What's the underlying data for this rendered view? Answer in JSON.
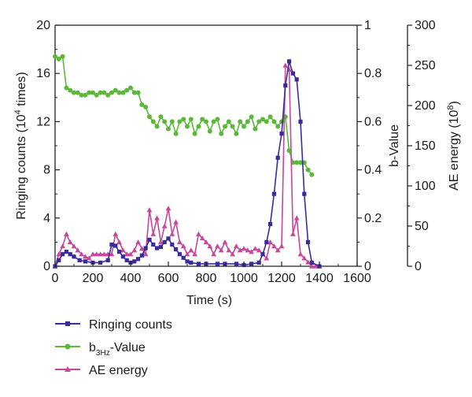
{
  "chart_data": {
    "type": "line",
    "x_axis": {
      "label": "Time (s)",
      "min": 0,
      "max": 1600,
      "ticks": [
        0,
        200,
        400,
        600,
        800,
        1000,
        1200,
        1400,
        1600
      ]
    },
    "y_left": {
      "label_main": "Ringing counts (10",
      "label_sup": "4",
      "label_tail": " times)",
      "min": 0,
      "max": 20,
      "ticks": [
        0,
        4,
        8,
        12,
        16,
        20
      ]
    },
    "y_b": {
      "label": "b-Value",
      "min": 0,
      "max": 1,
      "ticks": [
        "0",
        "0.2",
        "0.4",
        "0.6",
        "0.8",
        "1"
      ]
    },
    "y_ae": {
      "label_main": "AE energy (10",
      "label_sup": "8",
      "label_tail": ")",
      "min": 0,
      "max": 300,
      "ticks": [
        0,
        50,
        100,
        150,
        200,
        250,
        300
      ]
    },
    "legend": {
      "ringing": "Ringing counts",
      "b_prefix": "b",
      "b_sub": "3Hz",
      "b_suffix": "-Value",
      "ae": "AE energy"
    },
    "colors": {
      "ringing": "#3b2a9c",
      "b": "#5cb83a",
      "ae": "#c6479b"
    },
    "series": [
      {
        "name": "Ringing counts",
        "axis": "left",
        "marker": "square",
        "x": [
          0,
          20,
          40,
          60,
          80,
          100,
          130,
          160,
          200,
          240,
          280,
          300,
          320,
          340,
          360,
          380,
          400,
          420,
          440,
          460,
          480,
          500,
          520,
          540,
          560,
          580,
          600,
          620,
          640,
          660,
          680,
          700,
          720,
          760,
          800,
          860,
          900,
          960,
          1000,
          1040,
          1080,
          1100,
          1120,
          1140,
          1160,
          1180,
          1200,
          1220,
          1240,
          1260,
          1280,
          1300,
          1320,
          1340,
          1360,
          1400
        ],
        "y": [
          0,
          0.5,
          1,
          1.2,
          1,
          0.8,
          0.5,
          0.4,
          0.3,
          0.3,
          0.5,
          1.8,
          1.7,
          1.2,
          0.8,
          0.5,
          0.3,
          0.4,
          0.6,
          0.9,
          1.5,
          2.2,
          1.8,
          1.5,
          1.6,
          2,
          2.3,
          1.8,
          1.4,
          1,
          0.7,
          0.4,
          0.3,
          0.2,
          0.2,
          0.2,
          0.2,
          0.2,
          0.1,
          0.2,
          0.3,
          1,
          2,
          3.5,
          6,
          9,
          11,
          15,
          17,
          16,
          15.5,
          12,
          6,
          2,
          0.3,
          0
        ]
      },
      {
        "name": "b3Hz-Value",
        "axis": "b",
        "marker": "circle",
        "x": [
          0,
          20,
          40,
          60,
          80,
          100,
          120,
          140,
          160,
          180,
          200,
          220,
          240,
          260,
          280,
          300,
          320,
          340,
          360,
          380,
          400,
          420,
          440,
          460,
          480,
          500,
          520,
          540,
          560,
          580,
          600,
          620,
          640,
          660,
          680,
          700,
          720,
          740,
          760,
          780,
          800,
          820,
          840,
          860,
          880,
          900,
          920,
          940,
          960,
          980,
          1000,
          1020,
          1040,
          1060,
          1080,
          1100,
          1120,
          1140,
          1160,
          1180,
          1200,
          1220,
          1240,
          1260,
          1280,
          1300,
          1320,
          1340,
          1360
        ],
        "y": [
          0.87,
          0.86,
          0.87,
          0.74,
          0.73,
          0.72,
          0.72,
          0.71,
          0.71,
          0.72,
          0.72,
          0.71,
          0.72,
          0.72,
          0.71,
          0.72,
          0.73,
          0.72,
          0.72,
          0.73,
          0.74,
          0.72,
          0.72,
          0.67,
          0.66,
          0.62,
          0.6,
          0.58,
          0.62,
          0.6,
          0.57,
          0.6,
          0.55,
          0.6,
          0.61,
          0.58,
          0.61,
          0.55,
          0.58,
          0.61,
          0.6,
          0.56,
          0.6,
          0.61,
          0.55,
          0.58,
          0.6,
          0.58,
          0.55,
          0.6,
          0.58,
          0.6,
          0.62,
          0.57,
          0.6,
          0.61,
          0.6,
          0.62,
          0.6,
          0.58,
          0.6,
          0.62,
          0.48,
          0.43,
          0.43,
          0.43,
          0.43,
          0.4,
          0.38
        ]
      },
      {
        "name": "AE energy",
        "axis": "ae",
        "marker": "triangle",
        "x": [
          0,
          20,
          40,
          60,
          80,
          100,
          120,
          140,
          160,
          180,
          200,
          220,
          240,
          260,
          280,
          300,
          320,
          340,
          360,
          380,
          400,
          420,
          440,
          460,
          480,
          500,
          520,
          540,
          560,
          580,
          600,
          620,
          640,
          660,
          680,
          700,
          720,
          740,
          760,
          780,
          800,
          820,
          840,
          860,
          880,
          900,
          920,
          940,
          960,
          980,
          1000,
          1020,
          1040,
          1060,
          1080,
          1100,
          1120,
          1140,
          1160,
          1180,
          1200,
          1220,
          1240,
          1260,
          1280,
          1300,
          1320,
          1340,
          1360,
          1380,
          1400
        ],
        "y": [
          0,
          15,
          25,
          40,
          30,
          25,
          20,
          15,
          12,
          10,
          15,
          15,
          15,
          15,
          15,
          15,
          40,
          30,
          20,
          15,
          15,
          20,
          30,
          22,
          15,
          70,
          40,
          60,
          30,
          50,
          72,
          40,
          55,
          30,
          25,
          15,
          20,
          15,
          40,
          35,
          30,
          25,
          15,
          25,
          20,
          30,
          20,
          15,
          25,
          20,
          22,
          20,
          18,
          22,
          20,
          15,
          10,
          30,
          25,
          20,
          25,
          250,
          245,
          40,
          60,
          15,
          10,
          5,
          0,
          0,
          0
        ]
      }
    ]
  }
}
